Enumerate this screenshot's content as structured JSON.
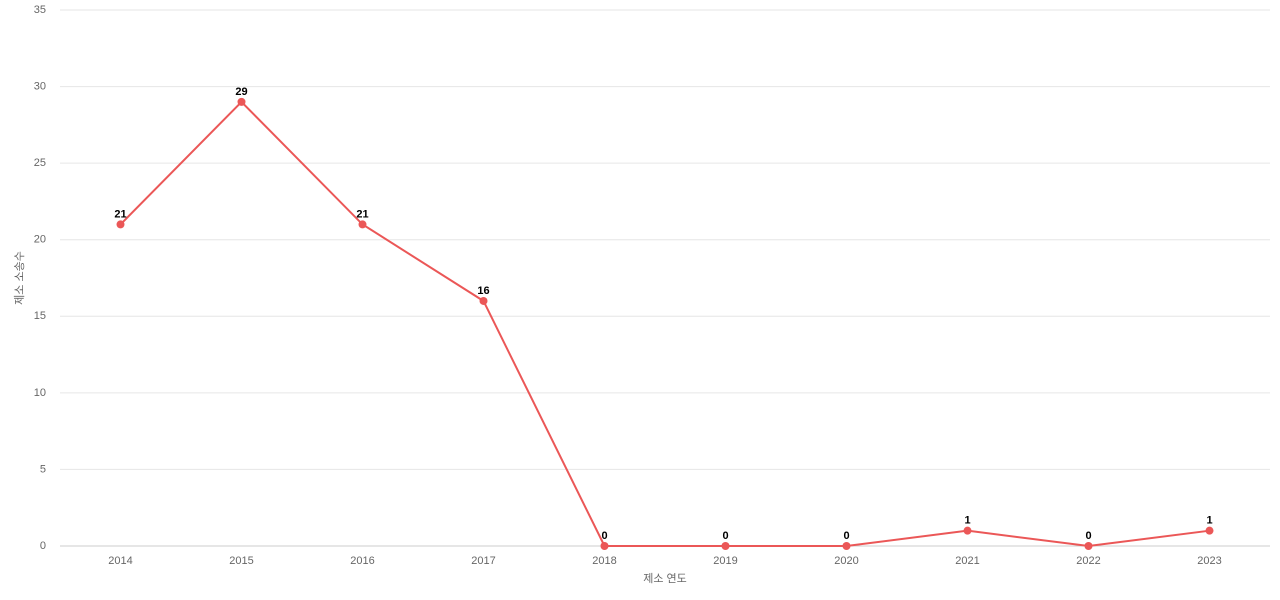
{
  "chart_data": {
    "type": "line",
    "x_label": "제소 연도",
    "y_label": "제소 소송수",
    "categories": [
      "2014",
      "2015",
      "2016",
      "2017",
      "2018",
      "2019",
      "2020",
      "2021",
      "2022",
      "2023"
    ],
    "series": [
      {
        "name": "제소 소송수",
        "color": "#eb5757",
        "values": [
          21,
          29,
          21,
          16,
          0,
          0,
          0,
          1,
          0,
          1
        ]
      }
    ],
    "ylim": [
      0,
      35
    ],
    "yticks": [
      0,
      5,
      10,
      15,
      20,
      25,
      30,
      35
    ],
    "grid": true,
    "legend": false
  }
}
